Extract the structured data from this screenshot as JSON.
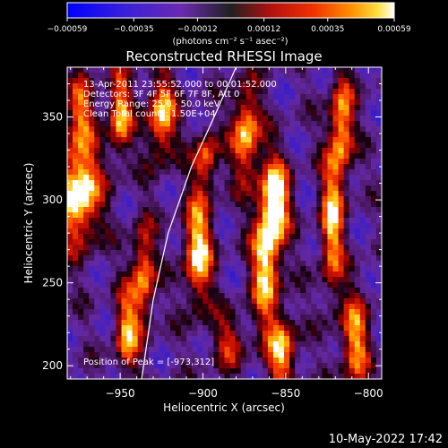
{
  "chart_data": {
    "type": "heatmap",
    "title": "Reconstructed RHESSI Image",
    "xlabel": "Heliocentric X (arcsec)",
    "ylabel": "Heliocentric Y (arcsec)",
    "xlim": [
      -982,
      -792
    ],
    "ylim": [
      192,
      380
    ],
    "xticks": [
      -950,
      -900,
      -850,
      -800
    ],
    "yticks": [
      200,
      250,
      300,
      350
    ],
    "xtick_labels": [
      "−950",
      "−900",
      "−850",
      "−800"
    ],
    "ytick_labels": [
      "200",
      "250",
      "300",
      "350"
    ],
    "colorbar": {
      "range": [
        -0.00059,
        0.00059
      ],
      "ticks": [
        -0.00059,
        -0.00035,
        -0.00012,
        0.00012,
        0.00035,
        0.00059
      ],
      "tick_labels": [
        "−0.00059",
        "−0.00035",
        "−0.00012",
        "0.00012",
        "0.00035",
        "0.00059"
      ],
      "units_label": "(photons cm⁻² s⁻¹ asec⁻²)",
      "colormap": "rainbow-blue-purple-red-orange-yellow-white"
    },
    "annotations": [
      "13-Apr-2011 23:55:52.000 to 00:01:52.000",
      "Detectors: 3F 4F 5F 6F 7F 8F, Att 0",
      "Energy Range: 25.0 - 50.0 keV",
      "Clean    Total counts: 1.50E+04"
    ],
    "peak_label": "Position of Peak = [-973,312]",
    "limb_curve": [
      [
        -937,
        192
      ],
      [
        -930,
        240
      ],
      [
        -921,
        280
      ],
      [
        -907,
        320
      ],
      [
        -891,
        355
      ],
      [
        -880,
        380
      ]
    ],
    "sources": [
      {
        "x": -975,
        "y": 305,
        "sx": 9,
        "sy": 22,
        "v": 1.0
      },
      {
        "x": -974,
        "y": 355,
        "sx": 6,
        "sy": 14,
        "v": 0.55
      },
      {
        "x": -950,
        "y": 352,
        "sx": 5,
        "sy": 18,
        "v": 0.75
      },
      {
        "x": -925,
        "y": 350,
        "sx": 6,
        "sy": 18,
        "v": 0.8
      },
      {
        "x": -936,
        "y": 255,
        "sx": 5,
        "sy": 22,
        "v": 0.7
      },
      {
        "x": -946,
        "y": 220,
        "sx": 5,
        "sy": 18,
        "v": 0.7
      },
      {
        "x": -903,
        "y": 270,
        "sx": 6,
        "sy": 24,
        "v": 0.85
      },
      {
        "x": -898,
        "y": 325,
        "sx": 5,
        "sy": 12,
        "v": 0.6
      },
      {
        "x": -874,
        "y": 340,
        "sx": 6,
        "sy": 20,
        "v": 0.8
      },
      {
        "x": -862,
        "y": 262,
        "sx": 6,
        "sy": 26,
        "v": 0.85
      },
      {
        "x": -856,
        "y": 300,
        "sx": 6,
        "sy": 18,
        "v": 0.9
      },
      {
        "x": -852,
        "y": 208,
        "sx": 6,
        "sy": 16,
        "v": 0.75
      },
      {
        "x": -822,
        "y": 285,
        "sx": 5,
        "sy": 30,
        "v": 0.75
      },
      {
        "x": -816,
        "y": 345,
        "sx": 5,
        "sy": 22,
        "v": 0.75
      },
      {
        "x": -808,
        "y": 215,
        "sx": 6,
        "sy": 20,
        "v": 0.7
      },
      {
        "x": -884,
        "y": 215,
        "sx": 7,
        "sy": 12,
        "v": 0.45
      }
    ]
  },
  "footer": {
    "date": "10-May-2022 17:42"
  }
}
